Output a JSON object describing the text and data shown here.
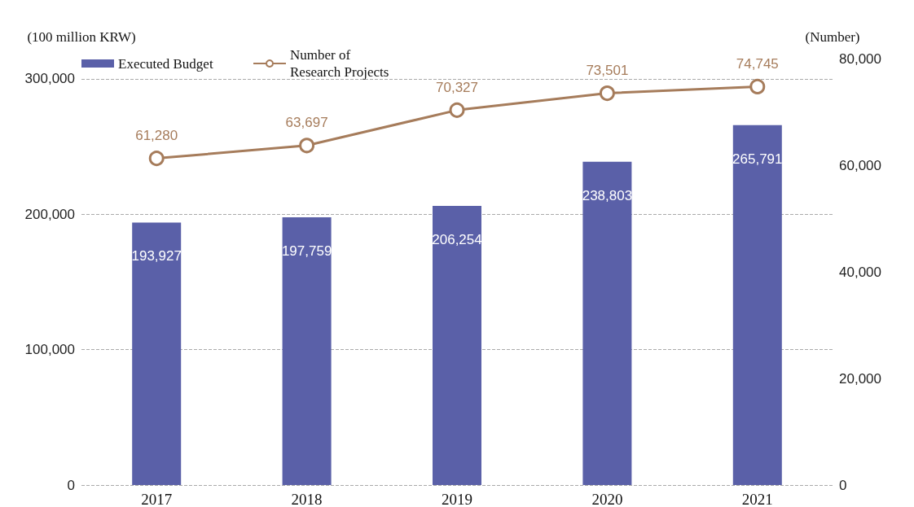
{
  "chart_data": {
    "type": "bar",
    "categories": [
      "2017",
      "2018",
      "2019",
      "2020",
      "2021"
    ],
    "ylabel": "(100 million KRW)",
    "y2label": "(Number)",
    "series": [
      {
        "name": "Executed Budget",
        "color": "#5a60a8",
        "values": [
          193927,
          197759,
          206254,
          238803,
          265791
        ],
        "value_labels": [
          "193,927",
          "197,759",
          "206,254",
          "238,803",
          "265,791"
        ]
      },
      {
        "name": "Number of Research Projects",
        "type": "line",
        "axis": "y2",
        "color": "#a67c5b",
        "values": [
          61280,
          63697,
          70327,
          73501,
          74745
        ],
        "value_labels": [
          "61,280",
          "63,697",
          "70,327",
          "73,501",
          "74,745"
        ]
      }
    ],
    "ylim": [
      0,
      315000
    ],
    "yticks": [
      0,
      {
        "value": 100000,
        "label": "100,000"
      },
      {
        "value": 200000,
        "label": "200,000"
      },
      {
        "value": 300000,
        "label": "300,000"
      }
    ],
    "y2lim": [
      0,
      80000
    ],
    "y2ticks": [
      0,
      {
        "value": 20000,
        "label": "20,000"
      },
      {
        "value": 40000,
        "label": "40,000"
      },
      {
        "value": 60000,
        "label": "60,000"
      },
      {
        "value": 80000,
        "label": "80,000"
      }
    ],
    "grid": "y",
    "legend": "top left",
    "marker": "circle"
  }
}
